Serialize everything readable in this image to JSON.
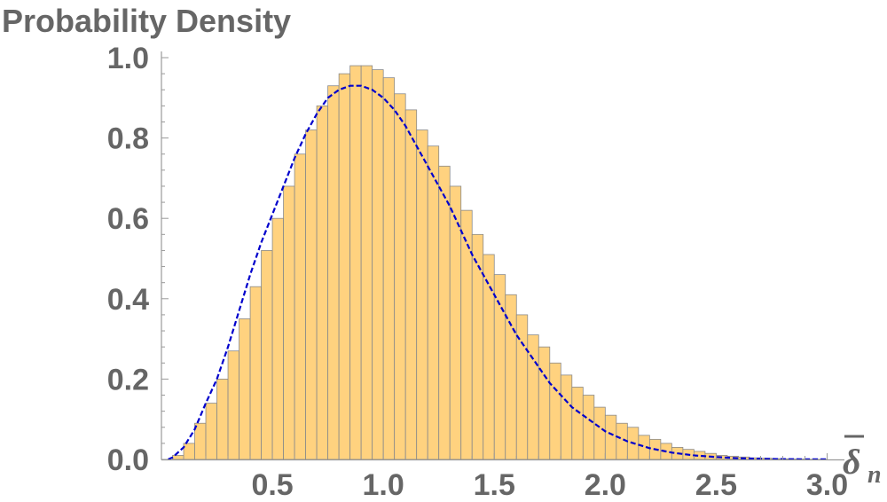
{
  "chart_data": {
    "type": "bar",
    "ylabel": "Probability Density",
    "xlabel": "δ",
    "xlabel_subscript": "n",
    "xlim": [
      0,
      3.05
    ],
    "ylim": [
      0,
      1.0
    ],
    "x_ticks": [
      0.5,
      1.0,
      1.5,
      2.0,
      2.5,
      3.0
    ],
    "x_tick_labels": [
      "0.5",
      "1.0",
      "1.5",
      "2.0",
      "2.5",
      "3.0"
    ],
    "y_ticks": [
      0.0,
      0.2,
      0.4,
      0.6,
      0.8,
      1.0
    ],
    "y_tick_labels": [
      "0.0",
      "0.2",
      "0.4",
      "0.6",
      "0.8",
      "1.0"
    ],
    "bin_width": 0.05,
    "bins_start": 0.05,
    "histogram_values": [
      0.01,
      0.04,
      0.09,
      0.14,
      0.2,
      0.27,
      0.35,
      0.43,
      0.52,
      0.6,
      0.68,
      0.76,
      0.82,
      0.88,
      0.93,
      0.96,
      0.98,
      0.98,
      0.97,
      0.95,
      0.91,
      0.87,
      0.82,
      0.78,
      0.73,
      0.68,
      0.62,
      0.56,
      0.51,
      0.46,
      0.41,
      0.36,
      0.31,
      0.28,
      0.24,
      0.21,
      0.18,
      0.16,
      0.13,
      0.11,
      0.09,
      0.08,
      0.06,
      0.05,
      0.04,
      0.03,
      0.025,
      0.02,
      0.015,
      0.01,
      0.008,
      0.006,
      0.004,
      0.003,
      0.002,
      0.0015,
      0.001,
      0.0005,
      0.0003
    ],
    "series": [
      {
        "name": "histogram"
      },
      {
        "name": "density curve"
      }
    ],
    "curve": {
      "x": [
        0.03,
        0.05,
        0.1,
        0.15,
        0.2,
        0.25,
        0.3,
        0.35,
        0.4,
        0.45,
        0.5,
        0.55,
        0.6,
        0.65,
        0.7,
        0.75,
        0.8,
        0.85,
        0.9,
        0.95,
        1.0,
        1.05,
        1.1,
        1.15,
        1.2,
        1.25,
        1.3,
        1.35,
        1.4,
        1.45,
        1.5,
        1.55,
        1.6,
        1.65,
        1.7,
        1.75,
        1.8,
        1.85,
        1.9,
        1.95,
        2.0,
        2.1,
        2.2,
        2.3,
        2.4,
        2.5,
        2.6,
        2.7,
        2.8,
        2.9,
        3.0
      ],
      "y": [
        0.0,
        0.005,
        0.03,
        0.075,
        0.14,
        0.2,
        0.28,
        0.37,
        0.46,
        0.54,
        0.61,
        0.68,
        0.75,
        0.81,
        0.86,
        0.9,
        0.92,
        0.93,
        0.93,
        0.92,
        0.9,
        0.87,
        0.83,
        0.78,
        0.73,
        0.68,
        0.63,
        0.57,
        0.51,
        0.46,
        0.41,
        0.36,
        0.31,
        0.27,
        0.23,
        0.19,
        0.16,
        0.13,
        0.11,
        0.09,
        0.07,
        0.045,
        0.028,
        0.017,
        0.01,
        0.006,
        0.003,
        0.0016,
        0.0008,
        0.0004,
        0.0002
      ]
    },
    "colors": {
      "bar_fill": "#FFD27F",
      "bar_stroke": "#8A8A8A",
      "curve": "#0000CC",
      "axis": "#999999",
      "text": "#666666"
    },
    "grid": false,
    "legend": "none"
  }
}
